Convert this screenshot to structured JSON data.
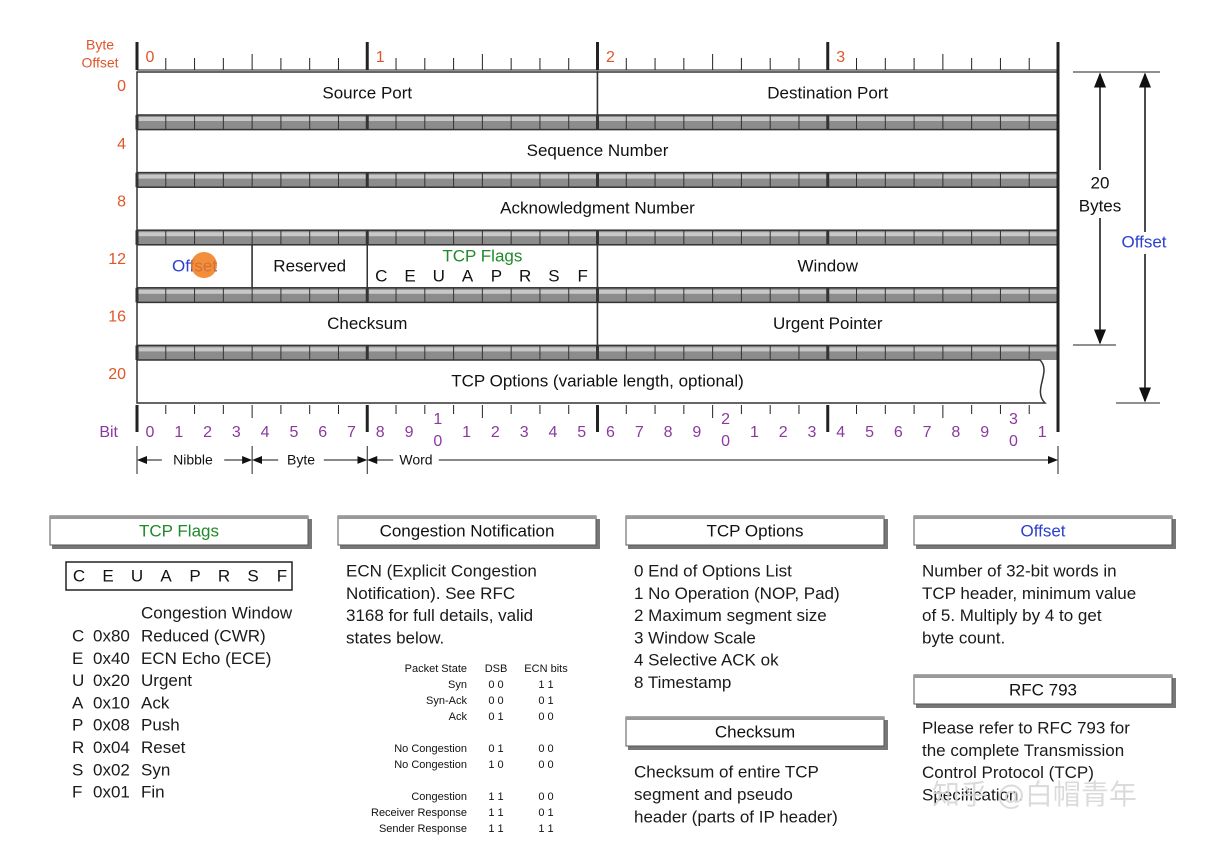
{
  "byte_offset_label": [
    "Byte",
    "Offset"
  ],
  "byte_columns": [
    "0",
    "1",
    "2",
    "3"
  ],
  "row_offsets": [
    "0",
    "4",
    "8",
    "12",
    "16",
    "20"
  ],
  "rows": [
    [
      {
        "label": "Source Port"
      },
      {
        "label": "Destination Port"
      }
    ],
    [
      {
        "label": "Sequence Number"
      }
    ],
    [
      {
        "label": "Acknowledgment Number"
      }
    ],
    [
      {
        "label": "Offset"
      },
      {
        "label": "Reserved"
      },
      {
        "label": "TCP Flags",
        "flags": [
          "C",
          "E",
          "U",
          "A",
          "P",
          "R",
          "S",
          "F"
        ]
      },
      {
        "label": "Window"
      }
    ],
    [
      {
        "label": "Checksum"
      },
      {
        "label": "Urgent Pointer"
      }
    ],
    [
      {
        "label": "TCP Options (variable length, optional)"
      }
    ]
  ],
  "bit_label": "Bit",
  "bits": [
    "0",
    "1",
    "2",
    "3",
    "4",
    "5",
    "6",
    "7",
    "8",
    "9",
    "10",
    "1",
    "2",
    "3",
    "4",
    "5",
    "6",
    "7",
    "8",
    "9",
    "20",
    "1",
    "2",
    "3",
    "4",
    "5",
    "6",
    "7",
    "8",
    "9",
    "30",
    "1"
  ],
  "scale": [
    "Nibble",
    "Byte",
    "Word"
  ],
  "header_size": [
    "20",
    "Bytes"
  ],
  "offset_label": "Offset",
  "tcp_flags_panel": {
    "title": "TCP Flags",
    "flags": [
      "C",
      "E",
      "U",
      "A",
      "P",
      "R",
      "S",
      "F"
    ],
    "subtitle": "Congestion Window",
    "items": [
      {
        "letter": "C",
        "hex": "0x80",
        "name": "Reduced (CWR)"
      },
      {
        "letter": "E",
        "hex": "0x40",
        "name": "ECN Echo (ECE)"
      },
      {
        "letter": "U",
        "hex": "0x20",
        "name": "Urgent"
      },
      {
        "letter": "A",
        "hex": "0x10",
        "name": "Ack"
      },
      {
        "letter": "P",
        "hex": "0x08",
        "name": "Push"
      },
      {
        "letter": "R",
        "hex": "0x04",
        "name": "Reset"
      },
      {
        "letter": "S",
        "hex": "0x02",
        "name": "Syn"
      },
      {
        "letter": "F",
        "hex": "0x01",
        "name": "Fin"
      }
    ]
  },
  "congestion_panel": {
    "title": "Congestion Notification",
    "lines": [
      "ECN (Explicit Congestion",
      "Notification).  See RFC",
      "3168 for full details, valid",
      "states below."
    ],
    "table": {
      "headers": [
        "Packet State",
        "DSB",
        "ECN bits"
      ],
      "groups": [
        [
          [
            "Syn",
            "0 0",
            "1 1"
          ],
          [
            "Syn-Ack",
            "0 0",
            "0 1"
          ],
          [
            "Ack",
            "0 1",
            "0 0"
          ]
        ],
        [
          [
            "No Congestion",
            "0 1",
            "0 0"
          ],
          [
            "No Congestion",
            "1 0",
            "0 0"
          ]
        ],
        [
          [
            "Congestion",
            "1 1",
            "0 0"
          ],
          [
            "Receiver Response",
            "1 1",
            "0 1"
          ],
          [
            "Sender Response",
            "1 1",
            "1 1"
          ]
        ]
      ]
    }
  },
  "options_panel": {
    "title": "TCP Options",
    "items": [
      "0 End of Options List",
      "1 No Operation (NOP, Pad)",
      "2 Maximum segment size",
      "3 Window Scale",
      "4 Selective ACK ok",
      "8 Timestamp"
    ]
  },
  "checksum_panel": {
    "title": "Checksum",
    "lines": [
      "Checksum of entire TCP",
      "segment and pseudo",
      "header (parts of IP header)"
    ]
  },
  "offset_panel": {
    "title": "Offset",
    "lines": [
      "Number of 32-bit words in",
      "TCP header, minimum value",
      "of 5.  Multiply by 4 to get",
      "byte count."
    ]
  },
  "rfc_panel": {
    "title": "RFC 793",
    "lines": [
      "Please refer to RFC 793 for",
      "the complete Transmission",
      "Control Protocol (TCP)",
      "Specification."
    ]
  },
  "watermark": "知乎 @白帽青年"
}
